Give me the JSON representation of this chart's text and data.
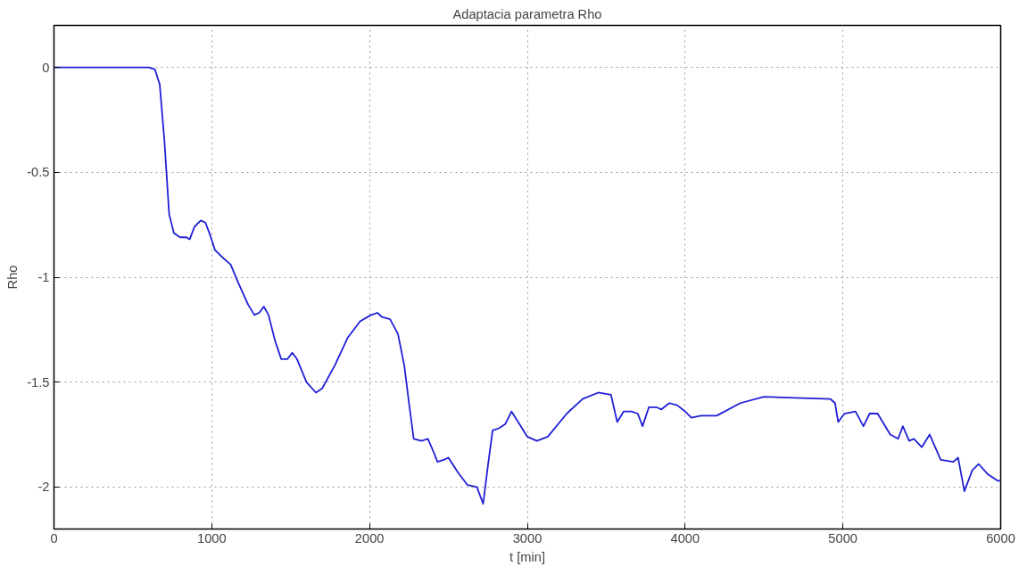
{
  "chart_data": {
    "type": "line",
    "title": "Adaptacia parametra Rho",
    "xlabel": "t [min]",
    "ylabel": "Rho",
    "x": [
      0,
      600,
      640,
      670,
      700,
      730,
      760,
      800,
      840,
      860,
      890,
      930,
      960,
      990,
      1020,
      1060,
      1120,
      1170,
      1230,
      1270,
      1300,
      1330,
      1360,
      1400,
      1440,
      1480,
      1510,
      1540,
      1600,
      1660,
      1700,
      1780,
      1860,
      1940,
      2010,
      2050,
      2080,
      2130,
      2180,
      2220,
      2250,
      2280,
      2330,
      2370,
      2410,
      2430,
      2470,
      2500,
      2560,
      2620,
      2680,
      2720,
      2750,
      2780,
      2820,
      2860,
      2900,
      2950,
      3000,
      3060,
      3130,
      3250,
      3350,
      3450,
      3530,
      3570,
      3610,
      3660,
      3700,
      3730,
      3770,
      3820,
      3850,
      3900,
      3950,
      4000,
      4040,
      4100,
      4200,
      4350,
      4500,
      4700,
      4920,
      4950,
      4970,
      5010,
      5080,
      5130,
      5170,
      5220,
      5300,
      5350,
      5380,
      5420,
      5450,
      5500,
      5550,
      5620,
      5700,
      5730,
      5770,
      5820,
      5860,
      5920,
      5980,
      6000
    ],
    "series": [
      {
        "color": "#1f1fd6",
        "values": [
          0,
          0,
          -0.01,
          -0.08,
          -0.35,
          -0.7,
          -0.79,
          -0.81,
          -0.81,
          -0.82,
          -0.76,
          -0.73,
          -0.74,
          -0.8,
          -0.87,
          -0.9,
          -0.94,
          -1.03,
          -1.13,
          -1.18,
          -1.17,
          -1.14,
          -1.18,
          -1.3,
          -1.39,
          -1.39,
          -1.36,
          -1.39,
          -1.5,
          -1.55,
          -1.53,
          -1.42,
          -1.29,
          -1.21,
          -1.18,
          -1.17,
          -1.19,
          -1.2,
          -1.27,
          -1.42,
          -1.6,
          -1.77,
          -1.78,
          -1.77,
          -1.84,
          -1.88,
          -1.87,
          -1.86,
          -1.93,
          -1.99,
          -2.0,
          -2.08,
          -1.9,
          -1.73,
          -1.72,
          -1.7,
          -1.64,
          -1.7,
          -1.76,
          -1.78,
          -1.76,
          -1.65,
          -1.58,
          -1.55,
          -1.56,
          -1.69,
          -1.64,
          -1.64,
          -1.65,
          -1.71,
          -1.62,
          -1.62,
          -1.63,
          -1.6,
          -1.61,
          -1.64,
          -1.67,
          -1.66,
          -1.66,
          -1.6,
          -1.57,
          -1.575,
          -1.58,
          -1.6,
          -1.69,
          -1.65,
          -1.64,
          -1.71,
          -1.65,
          -1.65,
          -1.75,
          -1.77,
          -1.71,
          -1.78,
          -1.77,
          -1.81,
          -1.75,
          -1.87,
          -1.88,
          -1.86,
          -2.02,
          -1.92,
          -1.89,
          -1.94,
          -1.97,
          -1.97
        ]
      }
    ],
    "xlim": [
      0,
      6000
    ],
    "ylim": [
      -2.2,
      0.2
    ],
    "xticks": [
      0,
      1000,
      2000,
      3000,
      4000,
      5000,
      6000
    ],
    "yticks": [
      {
        "value": -2,
        "label": "-2"
      },
      {
        "value": -1.5,
        "label": "-1.5"
      },
      {
        "value": -1,
        "label": "-1"
      },
      {
        "value": -0.5,
        "label": "-0.5"
      },
      {
        "value": 0,
        "label": "0"
      }
    ],
    "grid": true,
    "line_style": "solid",
    "marker": "none"
  }
}
